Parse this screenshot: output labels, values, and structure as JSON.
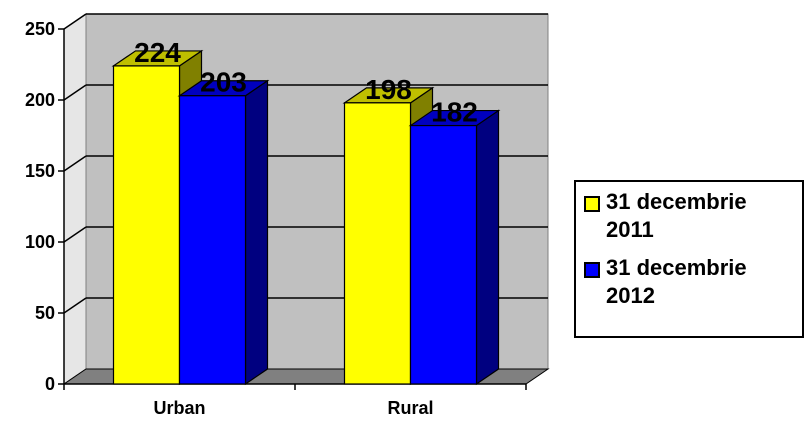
{
  "colors": {
    "wall": "#c0c0c0",
    "floor": "#808080",
    "grid": "#000000",
    "series_2011": "#ffff00",
    "series_2012": "#0000ff"
  },
  "legend": {
    "items": [
      {
        "line1": "31 decembrie",
        "line2": "2011",
        "color": "#ffff00"
      },
      {
        "line1": "31 decembrie",
        "line2": "2012",
        "color": "#0000ff"
      }
    ]
  },
  "chart_data": {
    "type": "bar",
    "categories": [
      "Urban",
      "Rural"
    ],
    "series": [
      {
        "name": "31 decembrie 2011",
        "values": [
          224,
          198
        ],
        "color": "#ffff00"
      },
      {
        "name": "31 decembrie 2012",
        "values": [
          203,
          182
        ],
        "color": "#0000ff"
      }
    ],
    "ylim": [
      0,
      250
    ],
    "yticks": [
      0,
      50,
      100,
      150,
      200,
      250
    ],
    "title": "",
    "xlabel": "",
    "ylabel": "",
    "grid": true,
    "legend_position": "right",
    "data_labels": true,
    "style": "3d-clustered-column"
  }
}
